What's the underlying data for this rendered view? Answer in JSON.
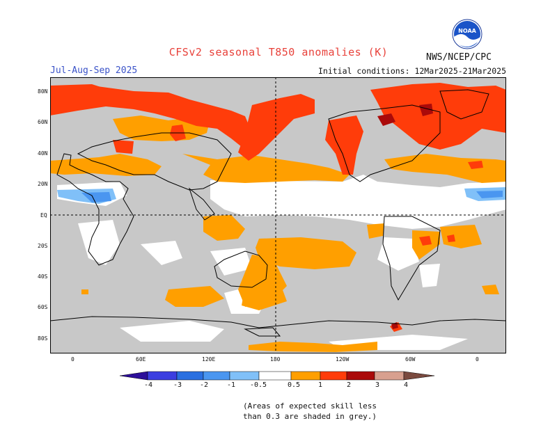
{
  "header": {
    "title": "CFSv2 seasonal T850 anomalies (K)",
    "season": "Jul-Aug-Sep 2025",
    "initial_conditions": "Initial conditions: 12Mar2025-21Mar2025",
    "agency": "NWS/NCEP/CPC",
    "logo_text": "NOAA"
  },
  "axes": {
    "lat_labels": [
      "80N",
      "60N",
      "40N",
      "20N",
      "EQ",
      "20S",
      "40S",
      "60S",
      "80S"
    ],
    "lon_labels": [
      "0",
      "60E",
      "120E",
      "180",
      "120W",
      "60W",
      "0"
    ]
  },
  "legend": {
    "labels": [
      "-4",
      "-3",
      "-2",
      "-1",
      "-0.5",
      "0.5",
      "1",
      "2",
      "3",
      "4"
    ],
    "colors": [
      "#2d0f9a",
      "#3b3ee0",
      "#2a6fe0",
      "#4a96f0",
      "#80c0f8",
      "#ffffff",
      "#ff9f00",
      "#ff3c0a",
      "#aa0a0a",
      "#d8a08f",
      "#7a4a3f"
    ],
    "skill_color": "#c8c8c8"
  },
  "note": {
    "line1": "(Areas of expected skill less",
    "line2": "than 0.3 are shaded in grey.)"
  }
}
